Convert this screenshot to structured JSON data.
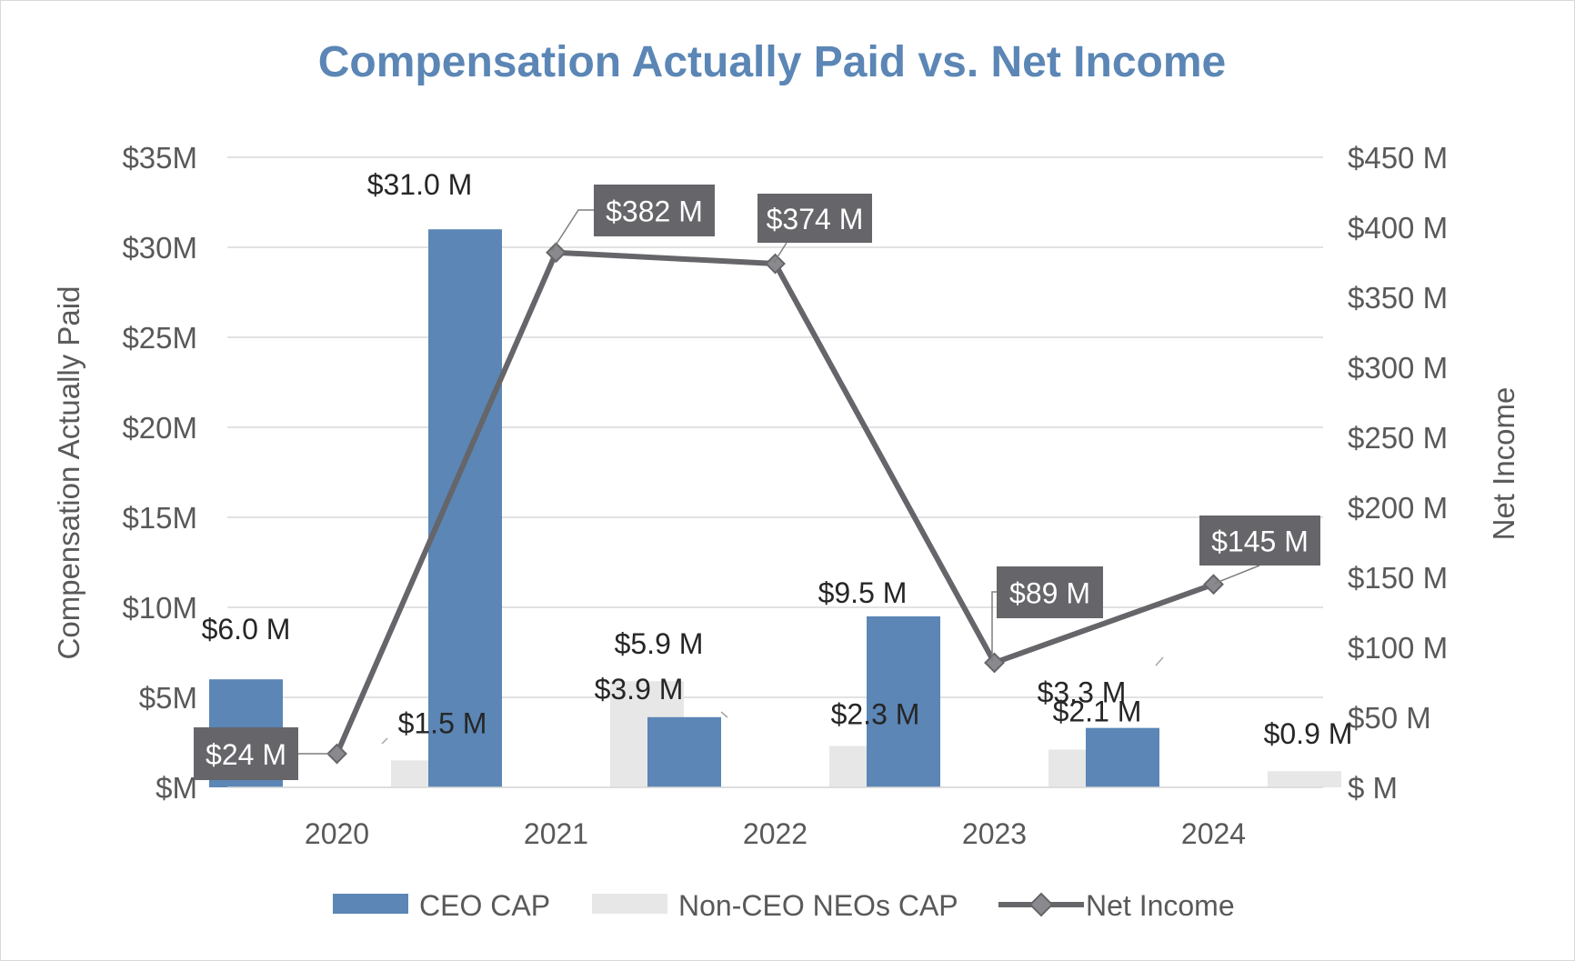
{
  "chart_data": {
    "type": "bar",
    "title": "Compensation Actually Paid vs. Net Income",
    "categories": [
      "2020",
      "2021",
      "2022",
      "2023",
      "2024"
    ],
    "ylabel": "Compensation Actually Paid",
    "y2label": "Net Income",
    "ylim": [
      0,
      35
    ],
    "y2lim": [
      0,
      450
    ],
    "yticks": [
      {
        "value": 0,
        "label": "$M"
      },
      {
        "value": 5,
        "label": "$5M"
      },
      {
        "value": 10,
        "label": "$10M"
      },
      {
        "value": 15,
        "label": "$15M"
      },
      {
        "value": 20,
        "label": "$20M"
      },
      {
        "value": 25,
        "label": "$25M"
      },
      {
        "value": 30,
        "label": "$30M"
      },
      {
        "value": 35,
        "label": "$35M"
      }
    ],
    "y2ticks": [
      {
        "value": 0,
        "label": "$ M"
      },
      {
        "value": 50,
        "label": "$50 M"
      },
      {
        "value": 100,
        "label": "$100 M"
      },
      {
        "value": 150,
        "label": "$150 M"
      },
      {
        "value": 200,
        "label": "$200 M"
      },
      {
        "value": 250,
        "label": "$250 M"
      },
      {
        "value": 300,
        "label": "$300 M"
      },
      {
        "value": 350,
        "label": "$350 M"
      },
      {
        "value": 400,
        "label": "$400 M"
      },
      {
        "value": 450,
        "label": "$450 M"
      }
    ],
    "series": [
      {
        "name": "CEO CAP",
        "type": "bar",
        "axis": "left",
        "values": [
          6.0,
          31.0,
          3.9,
          9.5,
          3.3
        ],
        "labels": [
          "$6.0 M",
          "$31.0 M",
          "$3.9 M",
          "$9.5 M",
          "$3.3 M"
        ]
      },
      {
        "name": "Non-CEO NEOs CAP",
        "type": "bar",
        "axis": "left",
        "values": [
          1.5,
          5.9,
          2.3,
          2.1,
          0.9
        ],
        "labels": [
          "$1.5 M",
          "$5.9 M",
          "$2.3 M",
          "$2.1 M",
          "$0.9 M"
        ]
      },
      {
        "name": "Net Income",
        "type": "line",
        "axis": "right",
        "values": [
          24,
          382,
          374,
          89,
          145
        ],
        "labels": [
          "$24 M",
          "$382 M",
          "$374 M",
          "$89 M",
          "$145 M"
        ]
      }
    ],
    "legend": [
      "CEO CAP",
      "Non-CEO NEOs CAP",
      "Net Income"
    ],
    "legend_position": "bottom",
    "grid": true
  },
  "colors": {
    "ceo_bar": "#5B86B5",
    "nonceo_bar": "#E7E7E7",
    "line": "#65656A",
    "title": "#5B86B5",
    "axis_text": "#595959",
    "grid": "#D9D9D9",
    "callout_bg": "#65656A",
    "callout_text": "#FFFFFF"
  }
}
